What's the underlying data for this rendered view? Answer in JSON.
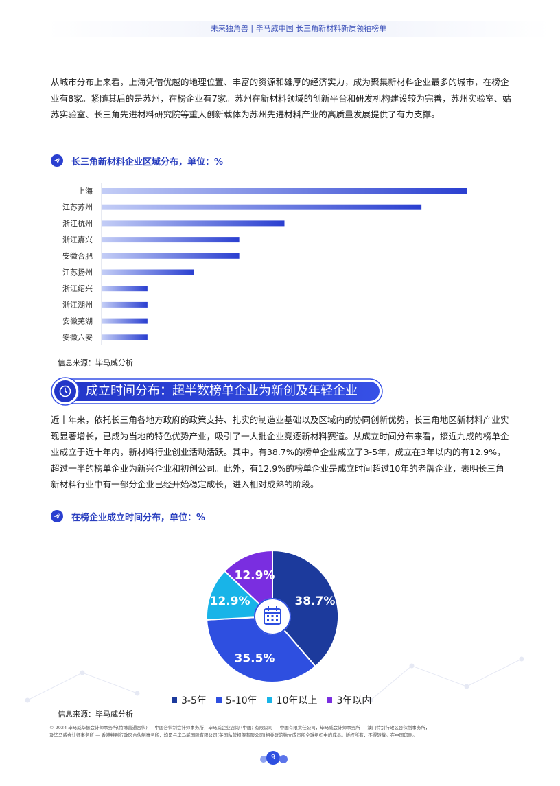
{
  "header": {
    "title": "未来独角兽 | 毕马威中国 长三角新材料新质领袖榜单"
  },
  "intro_paragraph": "从城市分布上来看，上海凭借优越的地理位置、丰富的资源和雄厚的经济实力，成为聚集新材料企业最多的城市，在榜企业有8家。紧随其后的是苏州，在榜企业有7家。苏州在新材料领域的创新平台和研发机构建设较为完善，苏州实验室、姑苏实验室、长三角先进材料研究院等重大创新载体为苏州先进材料产业的高质量发展提供了有力支撑。",
  "chart1_title": "长三角新材料企业区域分布，单位：%",
  "chart1_source": "信息来源：毕马威分析",
  "section_banner": "成立时间分布：超半数榜单企业为新创及年轻企业",
  "section_paragraph": "近十年来，依托长三角各地方政府的政策支持、扎实的制造业基础以及区域内的协同创新优势，长三角地区新材料产业实现显著增长，已成为当地的特色优势产业，吸引了一大批企业竞逐新材料赛道。从成立时间分布来看，接近九成的榜单企业成立于近十年内，新材料行业创业活动活跃。其中，有38.7%的榜单企业成立了3-5年，成立在3年以内的有12.9%，超过一半的榜单企业为新兴企业和初创公司。此外，有12.9%的榜单企业是成立时间超过10年的老牌企业，表明长三角新材料行业中有一部分企业已经开始稳定成长，进入相对成熟的阶段。",
  "chart2_title": "在榜企业成立时间分布，单位：%",
  "chart2_source": "信息来源：毕马威分析",
  "footer": {
    "line1": "© 2024 毕马威华振会计师事务所(特殊普通合伙) — 中国合伙制会计师事务所，毕马威企业咨询 (中国) 有限公司 — 中国有限责任公司，毕马威会计师事务所 — 澳门特别行政区合伙制事务所，",
    "line2": "及毕马威会计师事务所 — 香港特别行政区合伙制事务所，均是与毕马威国际有限公司(英国私营担保有限公司)相关联的独立成员所全球组织中的成员。版权所有，不得转载。在中国印刷。"
  },
  "page_number": "9",
  "chart_data": [
    {
      "type": "bar",
      "orientation": "horizontal",
      "categories": [
        "上海",
        "江苏苏州",
        "浙江杭州",
        "浙江嘉兴",
        "安徽合肥",
        "江苏扬州",
        "浙江绍兴",
        "浙江湖州",
        "安徽芜湖",
        "安徽六安"
      ],
      "values": [
        25.8,
        22.6,
        12.9,
        9.7,
        9.7,
        6.5,
        3.2,
        3.2,
        3.2,
        3.2
      ],
      "xlim": [
        0,
        30
      ],
      "color": "#2a3fd0"
    },
    {
      "type": "pie",
      "donut": true,
      "labels": [
        "3-5年",
        "5-10年",
        "10年以上",
        "3年以内"
      ],
      "values": [
        38.7,
        35.5,
        12.9,
        12.9
      ],
      "value_labels": [
        "38.7%",
        "35.5%",
        "12.9%",
        "12.9%"
      ],
      "colors": [
        "#1c3a9c",
        "#2e4fe0",
        "#18b4e8",
        "#7a2ee0"
      ],
      "legend_position": "bottom"
    }
  ]
}
